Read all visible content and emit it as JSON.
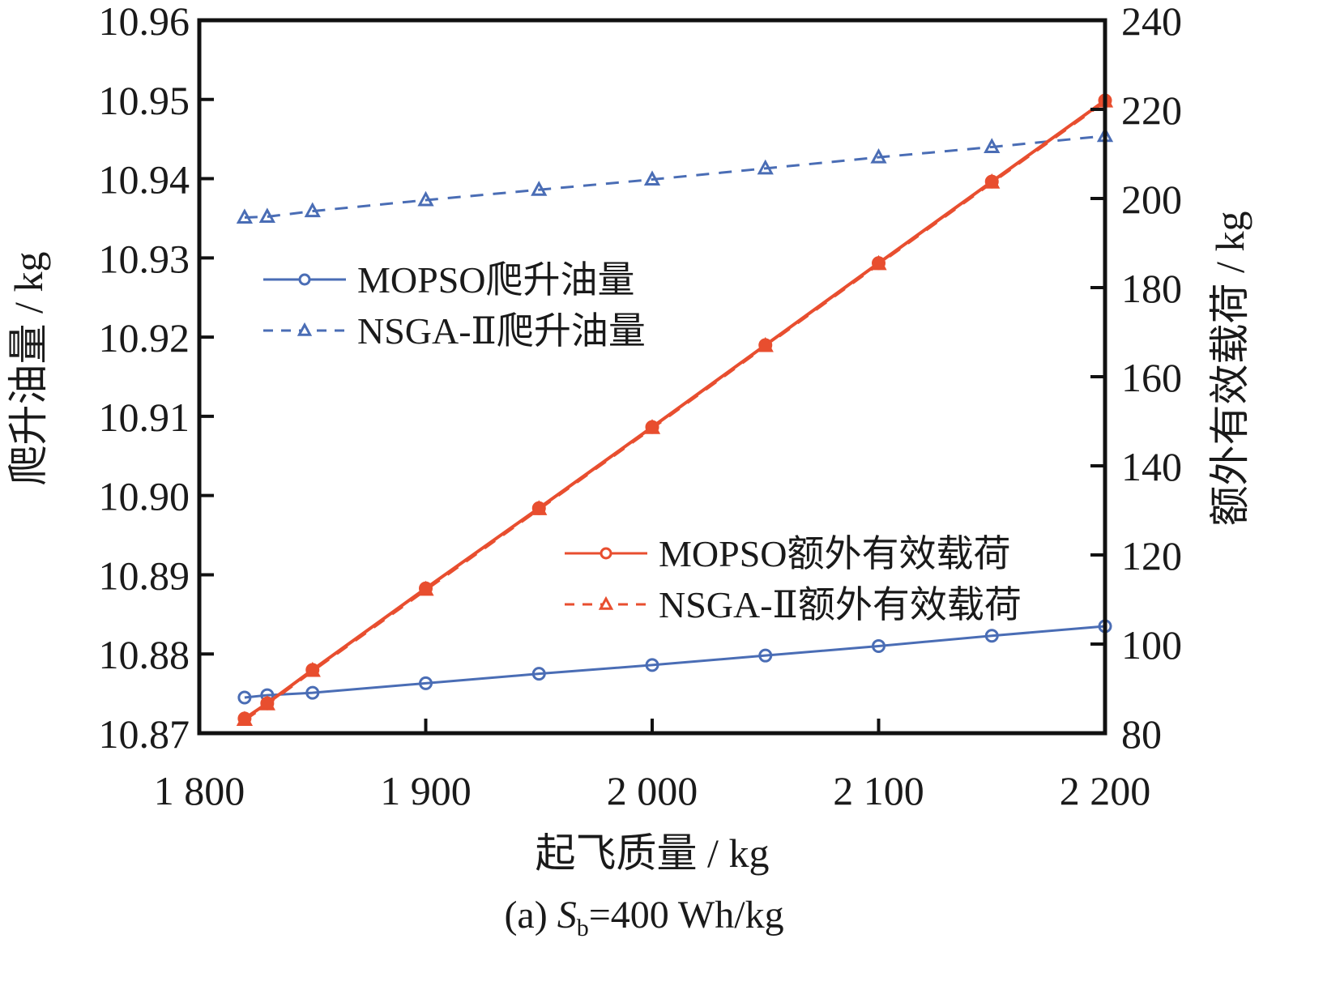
{
  "chart_data": {
    "type": "line",
    "title": "",
    "caption": {
      "prefix": "(a) ",
      "symbol": "S",
      "subscript": "b",
      "suffix": "=400 Wh/kg"
    },
    "xlabel": "起飞质量 / kg",
    "ylabel_left": "爬升油量 / kg",
    "ylabel_right": "额外有效载荷 / kg",
    "xlim": [
      1800,
      2200
    ],
    "ylim_left": [
      10.87,
      10.96
    ],
    "ylim_right": [
      80,
      240
    ],
    "x_ticks": [
      1800,
      1900,
      2000,
      2100,
      2200
    ],
    "x_tick_labels": [
      "1 800",
      "1 900",
      "2 000",
      "2 100",
      "2 200"
    ],
    "y_left_ticks": [
      10.87,
      10.88,
      10.89,
      10.9,
      10.91,
      10.92,
      10.93,
      10.94,
      10.95,
      10.96
    ],
    "y_left_tick_labels": [
      "10.87",
      "10.88",
      "10.89",
      "10.90",
      "10.91",
      "10.92",
      "10.93",
      "10.94",
      "10.95",
      "10.96"
    ],
    "y_right_ticks": [
      80,
      100,
      120,
      140,
      160,
      180,
      200,
      220,
      240
    ],
    "y_right_tick_labels": [
      "80",
      "100",
      "120",
      "140",
      "160",
      "180",
      "200",
      "220",
      "240"
    ],
    "grid": false,
    "x": [
      1820,
      1830,
      1850,
      1900,
      1950,
      2000,
      2050,
      2100,
      2150,
      2200
    ],
    "series": [
      {
        "name": "MOPSO爬升油量",
        "axis": "left",
        "color": "#4a6db5",
        "line": "solid",
        "marker": "circle",
        "values": [
          10.8745,
          10.8748,
          10.8751,
          10.8763,
          10.8775,
          10.8786,
          10.8798,
          10.881,
          10.8823,
          10.8835
        ]
      },
      {
        "name": "NSGA-Ⅱ爬升油量",
        "axis": "left",
        "color": "#4a6db5",
        "line": "dashed",
        "marker": "triangle",
        "values": [
          10.9351,
          10.9352,
          10.9359,
          10.9373,
          10.9386,
          10.9399,
          10.9413,
          10.9427,
          10.944,
          10.9454
        ]
      },
      {
        "name": "MOPSO额外有效载荷",
        "axis": "right",
        "color": "#e84e2f",
        "line": "solid",
        "marker": "circle",
        "values": [
          83.3,
          86.7,
          94.2,
          112.5,
          130.5,
          148.7,
          167.1,
          185.5,
          203.8,
          222.0
        ]
      },
      {
        "name": "NSGA-Ⅱ额外有效载荷",
        "axis": "right",
        "color": "#e84e2f",
        "line": "dashed",
        "marker": "triangle",
        "values": [
          83.0,
          86.5,
          94.0,
          112.2,
          130.3,
          148.5,
          166.9,
          185.3,
          203.6,
          221.8
        ]
      }
    ],
    "legends": [
      {
        "placement": "upper-left",
        "entries": [
          "MOPSO爬升油量",
          "NSGA-Ⅱ爬升油量"
        ]
      },
      {
        "placement": "lower-right",
        "entries": [
          "MOPSO额外有效载荷",
          "NSGA-Ⅱ额外有效载荷"
        ]
      }
    ]
  }
}
